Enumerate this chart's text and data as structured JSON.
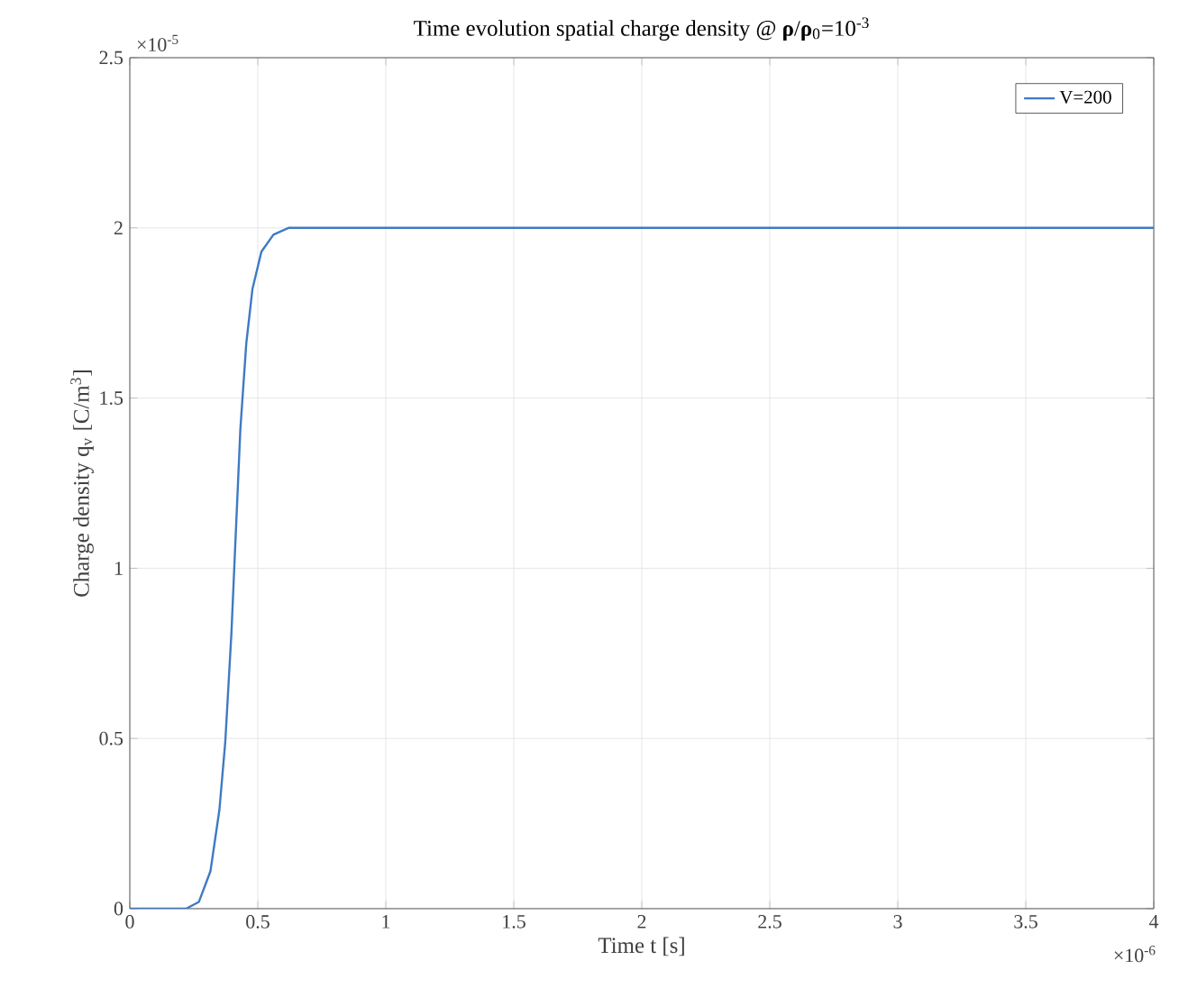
{
  "chart_data": {
    "type": "line",
    "title": "Time evolution spatial charge density @ **ρ**/**ρ**$_{0}$=10$^{-3}$",
    "xlabel": "Time t [s]",
    "ylabel": "Charge density q$_{v}$  [C/m$^{3}$]",
    "annotations": [
      "×10$^{-5}$",
      "×10$^{-6}$"
    ],
    "x": [
      0,
      0.1,
      0.22,
      0.27,
      0.315,
      0.35,
      0.373,
      0.397,
      0.408,
      0.432,
      0.455,
      0.479,
      0.514,
      0.561,
      0.62,
      1,
      2,
      3,
      4
    ],
    "series": [
      {
        "name": "V=200",
        "color": "#3f7ac4",
        "values": [
          0,
          0,
          0,
          0.02,
          0.11,
          0.29,
          0.49,
          0.81,
          1.0,
          1.41,
          1.66,
          1.82,
          1.93,
          1.98,
          2.0,
          2.0,
          2.0,
          2.0,
          2.0
        ]
      }
    ],
    "xlim": [
      0,
      4
    ],
    "ylim": [
      0,
      2.5
    ],
    "xticks": [
      0,
      0.5,
      1,
      1.5,
      2,
      2.5,
      3,
      3.5,
      4
    ],
    "yticks": [
      0,
      0.5,
      1,
      1.5,
      2,
      2.5
    ],
    "grid": true,
    "legend": "top right",
    "marker": "none",
    "line_style": "solid"
  }
}
